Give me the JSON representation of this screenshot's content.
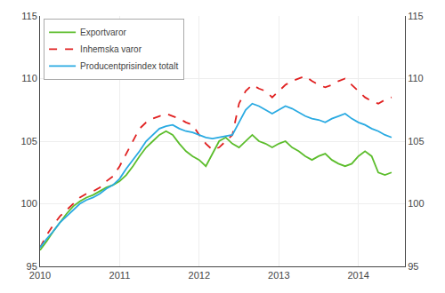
{
  "chart_data": {
    "type": "line",
    "x": [
      2010,
      2010.0833333333333,
      2010.1666666666667,
      2010.25,
      2010.3333333333333,
      2010.4166666666667,
      2010.5,
      2010.5833333333333,
      2010.6666666666667,
      2010.75,
      2010.8333333333333,
      2010.9166666666667,
      2011,
      2011.0833333333333,
      2011.1666666666667,
      2011.25,
      2011.3333333333333,
      2011.4166666666667,
      2011.5,
      2011.5833333333333,
      2011.6666666666667,
      2011.75,
      2011.8333333333333,
      2011.9166666666667,
      2012,
      2012.0833333333333,
      2012.1666666666667,
      2012.25,
      2012.3333333333333,
      2012.4166666666667,
      2012.5,
      2012.5833333333333,
      2012.6666666666667,
      2012.75,
      2012.8333333333333,
      2012.9166666666667,
      2013,
      2013.0833333333333,
      2013.1666666666667,
      2013.25,
      2013.3333333333333,
      2013.4166666666667,
      2013.5,
      2013.5833333333333,
      2013.6666666666667,
      2013.75,
      2013.8333333333333,
      2013.9166666666667,
      2014,
      2014.0833333333333,
      2014.1666666666667,
      2014.25,
      2014.3333333333333,
      2014.4166666666667
    ],
    "series": [
      {
        "name": "Exportvaror",
        "color": "#5cbd2c",
        "line_style": "solid",
        "values": [
          96.3,
          97.0,
          97.8,
          98.5,
          99.2,
          99.8,
          100.2,
          100.5,
          100.7,
          101.0,
          101.3,
          101.5,
          101.8,
          102.3,
          103.0,
          103.8,
          104.5,
          105.0,
          105.5,
          105.8,
          105.5,
          104.8,
          104.2,
          103.8,
          103.5,
          103.0,
          104.0,
          105.0,
          105.3,
          104.8,
          104.5,
          105.0,
          105.5,
          105.0,
          104.8,
          104.5,
          104.8,
          105.0,
          104.5,
          104.2,
          103.8,
          103.5,
          103.8,
          104.0,
          103.5,
          103.2,
          103.0,
          103.2,
          103.8,
          104.2,
          103.8,
          102.5,
          102.3,
          102.5
        ]
      },
      {
        "name": "Inhemska varor",
        "color": "#e02020",
        "line_style": "dashed",
        "values": [
          96.5,
          97.5,
          98.3,
          99.0,
          99.5,
          100.0,
          100.5,
          100.8,
          101.0,
          101.3,
          101.8,
          102.2,
          103.0,
          104.0,
          105.0,
          106.0,
          106.5,
          106.8,
          107.0,
          107.2,
          107.0,
          106.8,
          106.5,
          106.3,
          105.5,
          104.8,
          104.3,
          104.5,
          105.0,
          105.5,
          108.0,
          109.0,
          109.5,
          109.2,
          109.0,
          108.5,
          109.0,
          109.5,
          109.8,
          110.0,
          110.2,
          109.8,
          109.5,
          109.3,
          109.5,
          109.8,
          110.0,
          109.5,
          109.0,
          108.5,
          108.2,
          108.0,
          108.3,
          108.5
        ]
      },
      {
        "name": "Producentprisindex totalt",
        "color": "#29aae2",
        "line_style": "solid",
        "values": [
          96.5,
          97.2,
          97.8,
          98.5,
          99.0,
          99.5,
          100.0,
          100.3,
          100.5,
          100.8,
          101.2,
          101.5,
          102.0,
          102.8,
          103.5,
          104.2,
          105.0,
          105.5,
          106.0,
          106.2,
          106.3,
          106.0,
          105.8,
          105.7,
          105.5,
          105.3,
          105.2,
          105.3,
          105.4,
          105.5,
          106.5,
          107.5,
          108.0,
          107.8,
          107.5,
          107.2,
          107.5,
          107.8,
          107.6,
          107.3,
          107.0,
          106.8,
          106.7,
          106.5,
          106.8,
          107.0,
          107.2,
          106.8,
          106.5,
          106.3,
          106.0,
          105.8,
          105.5,
          105.3
        ]
      }
    ],
    "xlim": [
      2010.0,
      2014.585
    ],
    "xticks": [
      2010,
      2011,
      2012,
      2013,
      2014
    ],
    "ylim": [
      95,
      115
    ],
    "yticks": [
      95,
      100,
      105,
      110,
      115
    ],
    "y2lim": [
      95,
      115
    ],
    "y2ticks": [
      95,
      100,
      105,
      110,
      115
    ],
    "grid": true,
    "legend": "upper left"
  }
}
